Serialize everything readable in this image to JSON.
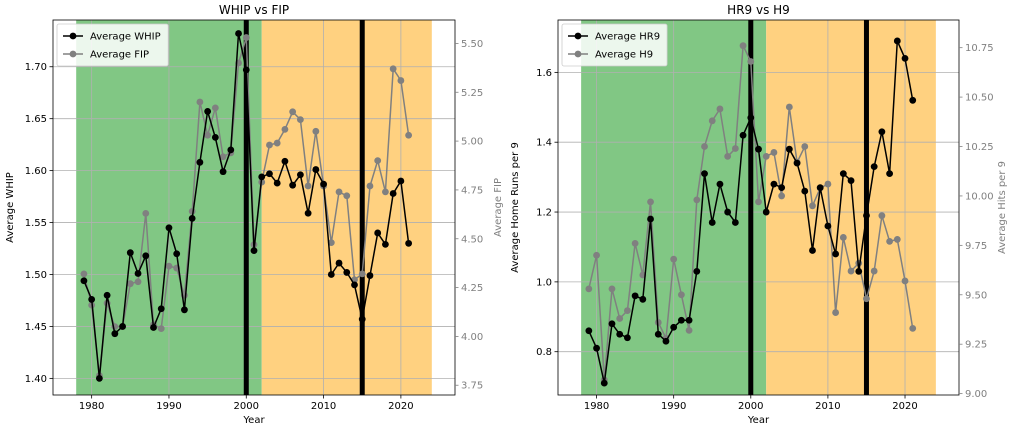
{
  "chart_data": [
    {
      "type": "line",
      "title": "WHIP vs FIP",
      "xlabel": "Year",
      "ylabel": "Average WHIP",
      "ylabel_right": "Average FIP",
      "xlim": [
        1975,
        2027
      ],
      "ylim": [
        1.384,
        1.745
      ],
      "ylim_right": [
        3.7,
        5.62
      ],
      "x_ticks": [
        1980,
        1990,
        2000,
        2010,
        2020
      ],
      "y_ticks": [
        1.4,
        1.45,
        1.5,
        1.55,
        1.6,
        1.65,
        1.7
      ],
      "y_ticks_right": [
        3.75,
        4.0,
        4.25,
        4.5,
        4.75,
        5.0,
        5.25,
        5.5
      ],
      "grid": true,
      "legend_position": "top-left",
      "regions": [
        {
          "from": 1978,
          "to": 2002,
          "color": "#81c784"
        },
        {
          "from": 2002,
          "to": 2024,
          "color": "#ffd180"
        }
      ],
      "vlines": [
        2000,
        2015
      ],
      "series": [
        {
          "name": "Average WHIP",
          "axis": "left",
          "color": "#000000",
          "x": [
            1979,
            1980,
            1981,
            1982,
            1983,
            1984,
            1985,
            1986,
            1987,
            1988,
            1989,
            1990,
            1991,
            1992,
            1993,
            1994,
            1995,
            1996,
            1997,
            1998,
            1999,
            2000,
            2001,
            2002,
            2003,
            2004,
            2005,
            2006,
            2007,
            2008,
            2009,
            2010,
            2011,
            2012,
            2013,
            2014,
            2015,
            2016,
            2017,
            2018,
            2019,
            2020,
            2021
          ],
          "values": [
            1.494,
            1.476,
            1.4,
            1.48,
            1.443,
            1.45,
            1.521,
            1.501,
            1.518,
            1.449,
            1.467,
            1.545,
            1.52,
            1.466,
            1.554,
            1.608,
            1.657,
            1.632,
            1.599,
            1.62,
            1.732,
            1.697,
            1.523,
            1.594,
            1.597,
            1.588,
            1.609,
            1.586,
            1.596,
            1.559,
            1.601,
            1.587,
            1.5,
            1.511,
            1.502,
            1.49,
            1.457,
            1.499,
            1.54,
            1.529,
            1.578,
            1.59,
            1.53
          ]
        },
        {
          "name": "Average FIP",
          "axis": "right",
          "color": "#808080",
          "x": [
            1979,
            1980,
            1981,
            1982,
            1983,
            1984,
            1985,
            1986,
            1987,
            1988,
            1989,
            1990,
            1991,
            1992,
            1993,
            1994,
            1995,
            1996,
            1997,
            1998,
            1999,
            2000,
            2001,
            2002,
            2003,
            2004,
            2005,
            2006,
            2007,
            2008,
            2009,
            2010,
            2011,
            2012,
            2013,
            2014,
            2015,
            2016,
            2017,
            2018,
            2019,
            2020,
            2021
          ],
          "values": [
            4.32,
            4.16,
            3.8,
            4.17,
            4.05,
            4.05,
            4.27,
            4.28,
            4.63,
            4.06,
            4.04,
            4.36,
            4.35,
            4.21,
            4.64,
            5.2,
            5.03,
            5.17,
            4.92,
            4.94,
            5.4,
            5.53,
            4.47,
            4.79,
            4.98,
            4.99,
            5.06,
            5.15,
            5.11,
            4.77,
            5.05,
            4.77,
            4.48,
            4.74,
            4.72,
            4.29,
            4.32,
            4.77,
            4.9,
            4.74,
            5.37,
            5.31,
            5.03
          ]
        }
      ]
    },
    {
      "type": "line",
      "title": "HR9 vs H9",
      "xlabel": "Year",
      "ylabel": "Average Home Runs per 9",
      "ylabel_right": "Average Hits per 9",
      "xlim": [
        1975,
        2027
      ],
      "ylim": [
        0.676,
        1.75
      ],
      "ylim_right": [
        8.993,
        10.89
      ],
      "x_ticks": [
        1980,
        1990,
        2000,
        2010,
        2020
      ],
      "y_ticks": [
        0.8,
        1.0,
        1.2,
        1.4,
        1.6
      ],
      "y_ticks_right": [
        9.0,
        9.25,
        9.5,
        9.75,
        10.0,
        10.25,
        10.5,
        10.75
      ],
      "grid": true,
      "legend_position": "top-left",
      "regions": [
        {
          "from": 1978,
          "to": 2002,
          "color": "#81c784"
        },
        {
          "from": 2002,
          "to": 2024,
          "color": "#ffd180"
        }
      ],
      "vlines": [
        2000,
        2015
      ],
      "series": [
        {
          "name": "Average HR9",
          "axis": "left",
          "color": "#000000",
          "x": [
            1979,
            1980,
            1981,
            1982,
            1983,
            1984,
            1985,
            1986,
            1987,
            1988,
            1989,
            1990,
            1991,
            1992,
            1993,
            1994,
            1995,
            1996,
            1997,
            1998,
            1999,
            2000,
            2001,
            2002,
            2003,
            2004,
            2005,
            2006,
            2007,
            2008,
            2009,
            2010,
            2011,
            2012,
            2013,
            2014,
            2015,
            2016,
            2017,
            2018,
            2019,
            2020,
            2021
          ],
          "values": [
            0.86,
            0.81,
            0.71,
            0.88,
            0.85,
            0.84,
            0.96,
            0.95,
            1.18,
            0.85,
            0.83,
            0.87,
            0.89,
            0.89,
            1.03,
            1.31,
            1.17,
            1.28,
            1.2,
            1.17,
            1.42,
            1.47,
            1.38,
            1.2,
            1.28,
            1.27,
            1.38,
            1.34,
            1.26,
            1.09,
            1.27,
            1.16,
            1.08,
            1.31,
            1.29,
            1.03,
            1.19,
            1.33,
            1.43,
            1.31,
            1.69,
            1.64,
            1.52
          ]
        },
        {
          "name": "Average H9",
          "axis": "right",
          "color": "#808080",
          "x": [
            1979,
            1980,
            1981,
            1982,
            1983,
            1984,
            1985,
            1986,
            1987,
            1988,
            1989,
            1990,
            1991,
            1992,
            1993,
            1994,
            1995,
            1996,
            1997,
            1998,
            1999,
            2000,
            2001,
            2002,
            2003,
            2004,
            2005,
            2006,
            2007,
            2008,
            2009,
            2010,
            2011,
            2012,
            2013,
            2014,
            2015,
            2016,
            2017,
            2018,
            2019,
            2020,
            2021
          ],
          "values": [
            9.53,
            9.7,
            9.07,
            9.53,
            9.38,
            9.42,
            9.76,
            9.6,
            9.97,
            9.36,
            9.28,
            9.68,
            9.5,
            9.32,
            9.98,
            10.25,
            10.38,
            10.44,
            10.2,
            10.24,
            10.76,
            10.68,
            9.97,
            10.2,
            10.22,
            10.0,
            10.45,
            10.17,
            10.25,
            9.95,
            10.04,
            10.06,
            9.41,
            9.79,
            9.62,
            9.66,
            9.48,
            9.62,
            9.9,
            9.77,
            9.78,
            9.57,
            9.33
          ]
        }
      ]
    }
  ]
}
